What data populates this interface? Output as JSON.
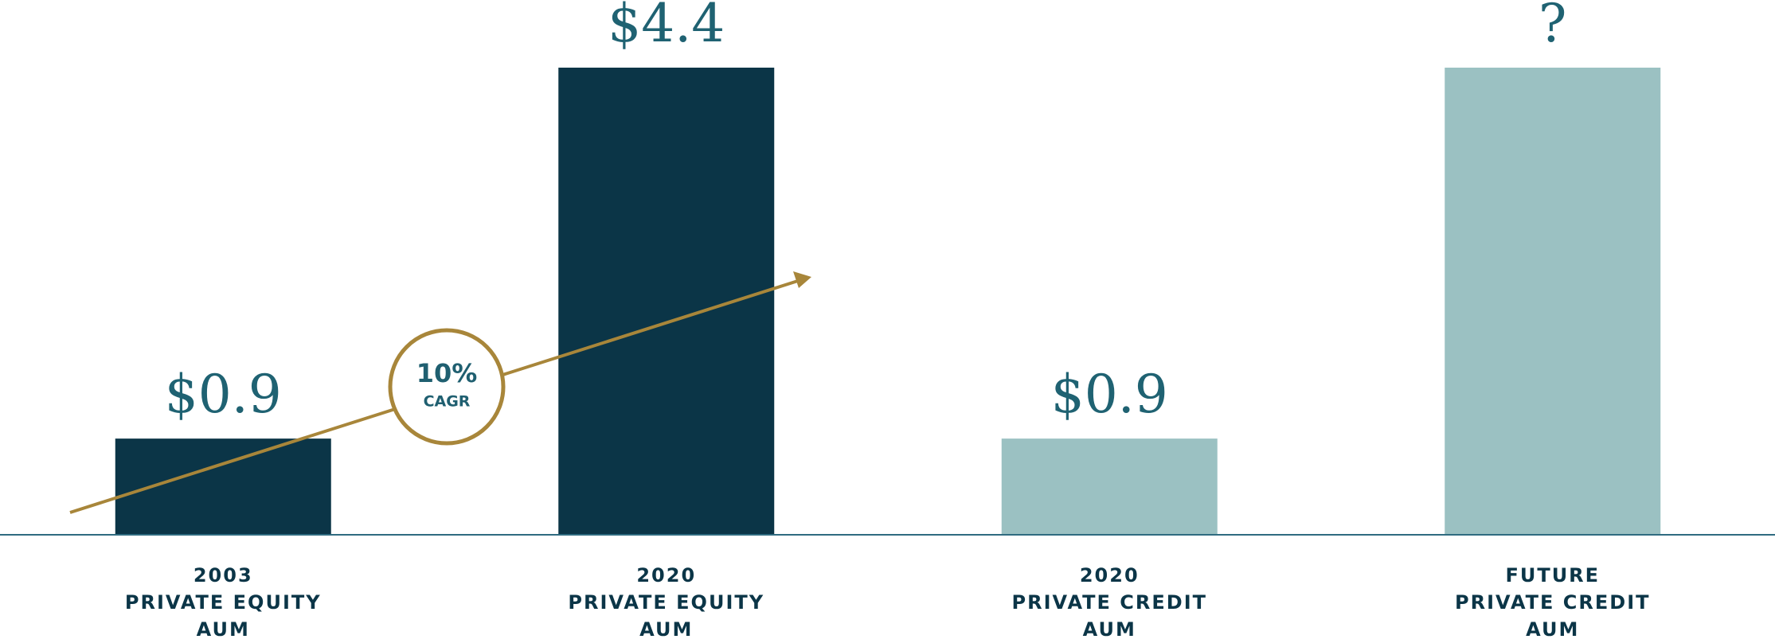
{
  "chart_data": {
    "type": "bar",
    "categories": [
      [
        "2003",
        "PRIVATE EQUITY",
        "AUM"
      ],
      [
        "2020",
        "PRIVATE EQUITY",
        "AUM"
      ],
      [
        "2020",
        "PRIVATE CREDIT",
        "AUM"
      ],
      [
        "FUTURE",
        "PRIVATE CREDIT",
        "AUM"
      ]
    ],
    "values": [
      0.9,
      4.4,
      0.9,
      4.4
    ],
    "value_labels": [
      "$0.9",
      "$4.4",
      "$0.9",
      "?"
    ],
    "colors": [
      "#0b3547",
      "#0b3547",
      "#9bc1c2",
      "#9bc1c2"
    ],
    "annotation": {
      "value": "10%",
      "label": "CAGR"
    }
  }
}
